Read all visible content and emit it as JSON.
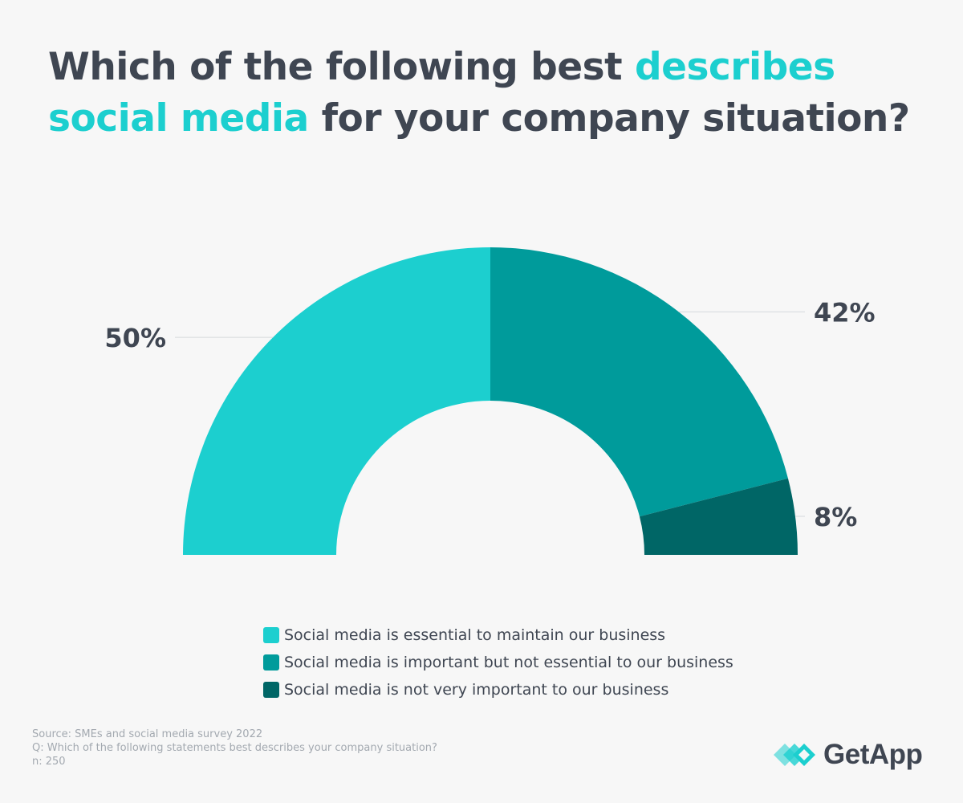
{
  "title": {
    "part1": "Which of the following best ",
    "highlight": "describes social media",
    "part2": " for your company situation?"
  },
  "chart_data": {
    "type": "pie",
    "subtype": "semi-donut",
    "categories": [
      "Social media is essential to maintain our business",
      "Social media is important but not essential to our business",
      "Social media is not very important to our business"
    ],
    "values": [
      50,
      42,
      8
    ],
    "data_labels": [
      "50%",
      "42%",
      "8%"
    ],
    "colors": [
      "#1ccfcf",
      "#009b9b",
      "#006666"
    ],
    "legend_position": "bottom"
  },
  "source": {
    "line1": "Source: SMEs and social media survey 2022",
    "line2": "Q: Which of the following statements best describes your company situation?",
    "line3": "n: 250"
  },
  "brand": {
    "name": "GetApp",
    "accent": "#1ccfcf"
  },
  "colors": {
    "text": "#3f4652",
    "accent": "#1ccfcf",
    "background": "#f7f7f7"
  }
}
